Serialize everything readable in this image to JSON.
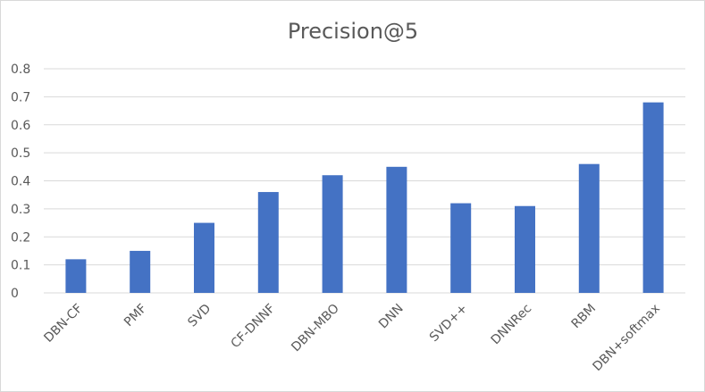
{
  "chart_data": {
    "type": "bar",
    "title": "Precision@5",
    "xlabel": "",
    "ylabel": "",
    "categories": [
      "DBN-CF",
      "PMF",
      "SVD",
      "CF-DNNF",
      "DBN-MBO",
      "DNN",
      "SVD++",
      "DNNRec",
      "RBM",
      "DBN+softmax"
    ],
    "values": [
      0.12,
      0.15,
      0.25,
      0.36,
      0.42,
      0.45,
      0.32,
      0.31,
      0.46,
      0.68
    ],
    "ylim": [
      0,
      0.8
    ],
    "yticks": [
      "0",
      "0.1",
      "0.2",
      "0.3",
      "0.4",
      "0.5",
      "0.6",
      "0.7",
      "0.8"
    ],
    "grid": true,
    "legend": "none",
    "bar_color": "#4472c4",
    "grid_color": "#d9d9d9"
  }
}
